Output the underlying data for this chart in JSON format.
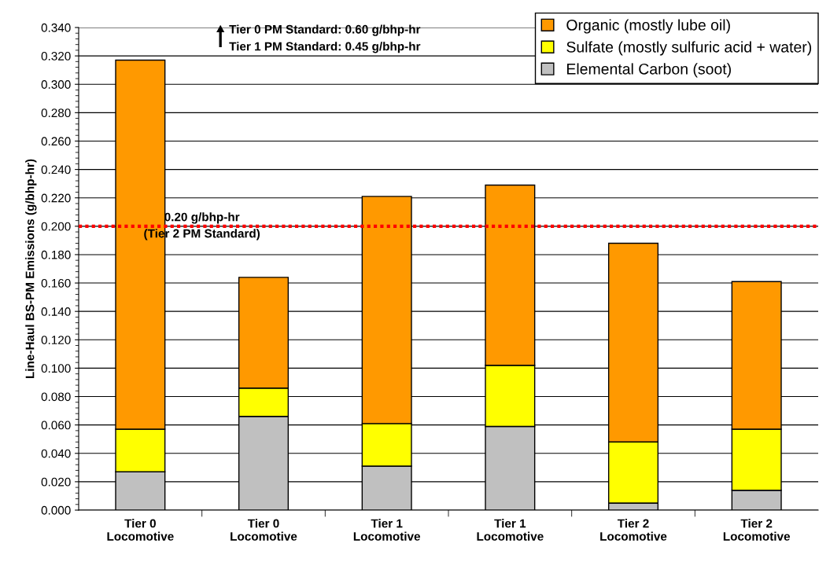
{
  "chart_data": {
    "type": "bar",
    "stacked": true,
    "ylabel": "Line-Haul BS-PM Emissions (g/bhp-hr)",
    "categories": [
      "Tier 0\nLocomotive",
      "Tier 0\nLocomotive",
      "Tier 1\nLocomotive",
      "Tier 1\nLocomotive",
      "Tier 2\nLocomotive",
      "Tier 2\nLocomotive"
    ],
    "series": [
      {
        "name": "Elemental Carbon (soot)",
        "color": "#c0c0c0",
        "values": [
          0.027,
          0.066,
          0.031,
          0.059,
          0.005,
          0.014
        ]
      },
      {
        "name": "Sulfate (mostly sulfuric acid + water)",
        "color": "#ffff00",
        "values": [
          0.03,
          0.02,
          0.03,
          0.043,
          0.043,
          0.043
        ]
      },
      {
        "name": "Organic (mostly lube oil)",
        "color": "#ff9900",
        "values": [
          0.26,
          0.078,
          0.16,
          0.127,
          0.14,
          0.104
        ]
      }
    ],
    "ylim": [
      0,
      0.34
    ],
    "yticks": [
      {
        "value": 0,
        "label": "0.000"
      },
      {
        "value": 0.02,
        "label": "0.020"
      },
      {
        "value": 0.04,
        "label": "0.040"
      },
      {
        "value": 0.06,
        "label": "0.060"
      },
      {
        "value": 0.08,
        "label": "0.080"
      },
      {
        "value": 0.1,
        "label": "0.100"
      },
      {
        "value": 0.12,
        "label": "0.120"
      },
      {
        "value": 0.14,
        "label": "0.140"
      },
      {
        "value": 0.16,
        "label": "0.160"
      },
      {
        "value": 0.18,
        "label": "0.180"
      },
      {
        "value": 0.2,
        "label": "0.200"
      },
      {
        "value": 0.22,
        "label": "0.220"
      },
      {
        "value": 0.24,
        "label": "0.240"
      },
      {
        "value": 0.26,
        "label": "0.260"
      },
      {
        "value": 0.28,
        "label": "0.280"
      },
      {
        "value": 0.3,
        "label": "0.300"
      },
      {
        "value": 0.32,
        "label": "0.320"
      },
      {
        "value": 0.34,
        "label": "0.340"
      }
    ],
    "ref_lines": [
      {
        "axis": "y",
        "value": 0.2,
        "label": "0.20 g/bhp-hr\n(Tier 2 PM Standard)",
        "color": "#ff0000",
        "line_style": "dotted"
      }
    ],
    "annotations": [
      "Tier 0 PM Standard: 0.60 g/bhp-hr",
      "Tier 1 PM Standard: 0.45 g/bhp-hr"
    ],
    "grid": "y",
    "legend": "top right"
  }
}
